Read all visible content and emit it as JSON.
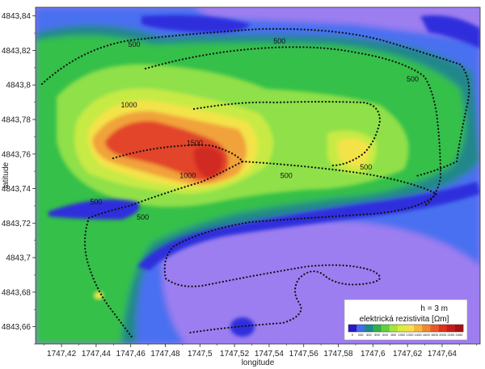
{
  "chart_data": {
    "type": "heatmap",
    "title": "",
    "xlabel": "longitude",
    "ylabel": "latitude",
    "xlim": [
      1747.405,
      1747.662
    ],
    "ylim": [
      4843.65,
      4843.845
    ],
    "x_ticks": [
      "1747,42",
      "1747,44",
      "1747,46",
      "1747,48",
      "1747,5",
      "1747,52",
      "1747,54",
      "1747,56",
      "1747,58",
      "1747,6",
      "1747,62",
      "1747,64"
    ],
    "x_tick_values": [
      1747.42,
      1747.44,
      1747.46,
      1747.48,
      1747.5,
      1747.52,
      1747.54,
      1747.56,
      1747.58,
      1747.6,
      1747.62,
      1747.64
    ],
    "y_ticks": [
      "4843,84",
      "4843,82",
      "4843,8",
      "4843,78",
      "4843,76",
      "4843,74",
      "4843,72",
      "4843,7",
      "4843,68",
      "4843,66"
    ],
    "y_tick_values": [
      4843.84,
      4843.82,
      4843.8,
      4843.78,
      4843.76,
      4843.74,
      4843.72,
      4843.7,
      4843.68,
      4843.66
    ],
    "contour_labels": [
      {
        "text": "500",
        "x": 1747.462,
        "y": 4843.822
      },
      {
        "text": "500",
        "x": 1747.546,
        "y": 4843.824
      },
      {
        "text": "500",
        "x": 1747.623,
        "y": 4843.802
      },
      {
        "text": "1000",
        "x": 1747.459,
        "y": 4843.787
      },
      {
        "text": "1500",
        "x": 1747.497,
        "y": 4843.765
      },
      {
        "text": "1000",
        "x": 1747.493,
        "y": 4843.746
      },
      {
        "text": "500",
        "x": 1747.44,
        "y": 4843.731
      },
      {
        "text": "500",
        "x": 1747.467,
        "y": 4843.722
      },
      {
        "text": "500",
        "x": 1747.55,
        "y": 4843.746
      },
      {
        "text": "500",
        "x": 1747.596,
        "y": 4843.751
      }
    ],
    "legend": {
      "height_label": "h = 3 m",
      "title": "elektrická rezistivita [Ωm]",
      "tick_labels": [
        "0",
        "200",
        "400",
        "500",
        "600",
        "800",
        "1000",
        "1200",
        "1400",
        "1600",
        "1800",
        "2000",
        "2200",
        "2400"
      ],
      "colors": [
        "#2a18c8",
        "#3f6fe8",
        "#1a8a8a",
        "#2fb04a",
        "#5fd23a",
        "#a8e43a",
        "#dcec3a",
        "#f6e04a",
        "#f6b83a",
        "#f08a2e",
        "#ea5a26",
        "#e0301e",
        "#c81a1a",
        "#a80f14"
      ],
      "placement": "bottom-right"
    },
    "colors": {
      "deep_blue": "#2f2fdc",
      "blue": "#4a6ff0",
      "purple": "#9d7ef0",
      "teal": "#24878a",
      "green": "#35c04a",
      "light_green": "#8fe048",
      "yellow_green": "#c8ea45",
      "yellow": "#f3e34a",
      "orange": "#f1a23a",
      "red": "#e2452c",
      "dark_red": "#d12c22"
    }
  }
}
